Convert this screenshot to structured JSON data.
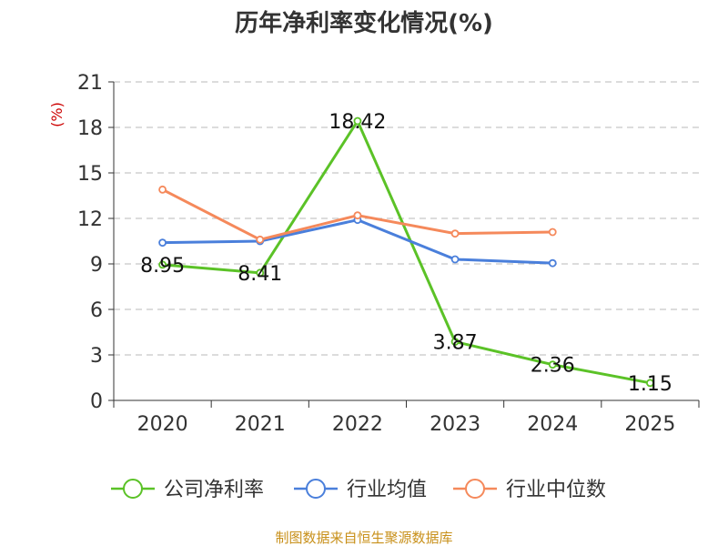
{
  "chart_data": {
    "type": "line",
    "title": "历年净利率变化情况(%)",
    "ylabel": "(%)",
    "xlabel": "",
    "categories": [
      "2020",
      "2021",
      "2022",
      "2023",
      "2024",
      "2025"
    ],
    "ylim": [
      0,
      21
    ],
    "yticks": [
      0,
      3,
      6,
      9,
      12,
      15,
      18,
      21
    ],
    "grid": true,
    "legend_position": "bottom",
    "series": [
      {
        "name": "公司净利率",
        "color": "#5bc227",
        "values": [
          8.95,
          8.41,
          18.42,
          3.87,
          2.36,
          1.15
        ],
        "data_labels": [
          "8.95",
          "8.41",
          "18.42",
          "3.87",
          "2.36",
          "1.15"
        ]
      },
      {
        "name": "行业均值",
        "color": "#4a7fdb",
        "values": [
          10.4,
          10.5,
          11.9,
          9.3,
          9.05,
          null
        ]
      },
      {
        "name": "行业中位数",
        "color": "#f5895b",
        "values": [
          13.9,
          10.6,
          12.2,
          11.0,
          11.1,
          null
        ]
      }
    ]
  },
  "source": "制图数据来自恒生聚源数据库"
}
